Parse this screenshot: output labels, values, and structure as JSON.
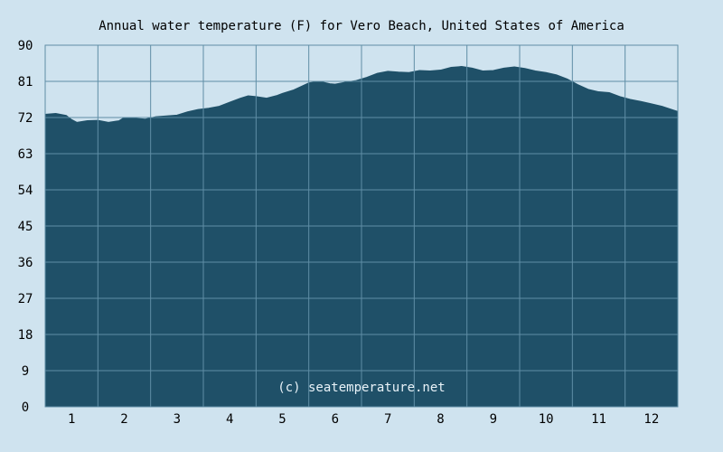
{
  "chart_data": {
    "type": "area",
    "title": "Annual water temperature (F) for Vero Beach, United States of America",
    "xlabel": "",
    "ylabel": "",
    "watermark": "(c) seatemperature.net",
    "ylim": [
      0,
      90
    ],
    "yticks": [
      "0",
      "9",
      "18",
      "27",
      "36",
      "45",
      "54",
      "63",
      "72",
      "81",
      "90"
    ],
    "xlim": [
      0.5,
      12.5
    ],
    "xticks": [
      "1",
      "2",
      "3",
      "4",
      "5",
      "6",
      "7",
      "8",
      "9",
      "10",
      "11",
      "12"
    ],
    "grid": true,
    "colors": {
      "background": "#cfe3ef",
      "fill": "#1f5068",
      "grid": "#5f8ea6"
    },
    "series": [
      {
        "x": [
          0.5,
          0.7,
          0.9,
          1.0,
          1.1,
          1.3,
          1.5,
          1.7,
          1.9,
          2.0,
          2.2,
          2.4,
          2.6,
          2.8,
          3.0,
          3.2,
          3.4,
          3.6,
          3.8,
          4.0,
          4.2,
          4.35,
          4.5,
          4.7,
          4.9,
          5.0,
          5.2,
          5.4,
          5.5,
          5.7,
          5.9,
          6.0,
          6.2,
          6.4,
          6.6,
          6.8,
          7.0,
          7.2,
          7.4,
          7.6,
          7.8,
          8.0,
          8.2,
          8.4,
          8.6,
          8.8,
          9.0,
          9.2,
          9.4,
          9.6,
          9.8,
          10.0,
          10.2,
          10.4,
          10.6,
          10.8,
          11.0,
          11.2,
          11.4,
          11.6,
          11.8,
          12.0,
          12.2,
          12.5
        ],
        "values": [
          72.8,
          73.0,
          72.5,
          71.5,
          70.8,
          71.2,
          71.3,
          70.8,
          71.2,
          72.0,
          71.8,
          71.6,
          72.2,
          72.4,
          72.6,
          73.4,
          74.0,
          74.3,
          74.8,
          75.8,
          76.8,
          77.4,
          77.2,
          76.8,
          77.5,
          78.0,
          78.8,
          80.0,
          80.6,
          81.0,
          80.4,
          80.3,
          80.8,
          81.2,
          82.0,
          83.0,
          83.5,
          83.3,
          83.2,
          83.7,
          83.6,
          83.8,
          84.5,
          84.7,
          84.3,
          83.6,
          83.7,
          84.3,
          84.6,
          84.2,
          83.6,
          83.2,
          82.6,
          81.6,
          80.2,
          79.0,
          78.4,
          78.2,
          77.2,
          76.5,
          76.0,
          75.4,
          74.8,
          73.5
        ]
      }
    ]
  }
}
